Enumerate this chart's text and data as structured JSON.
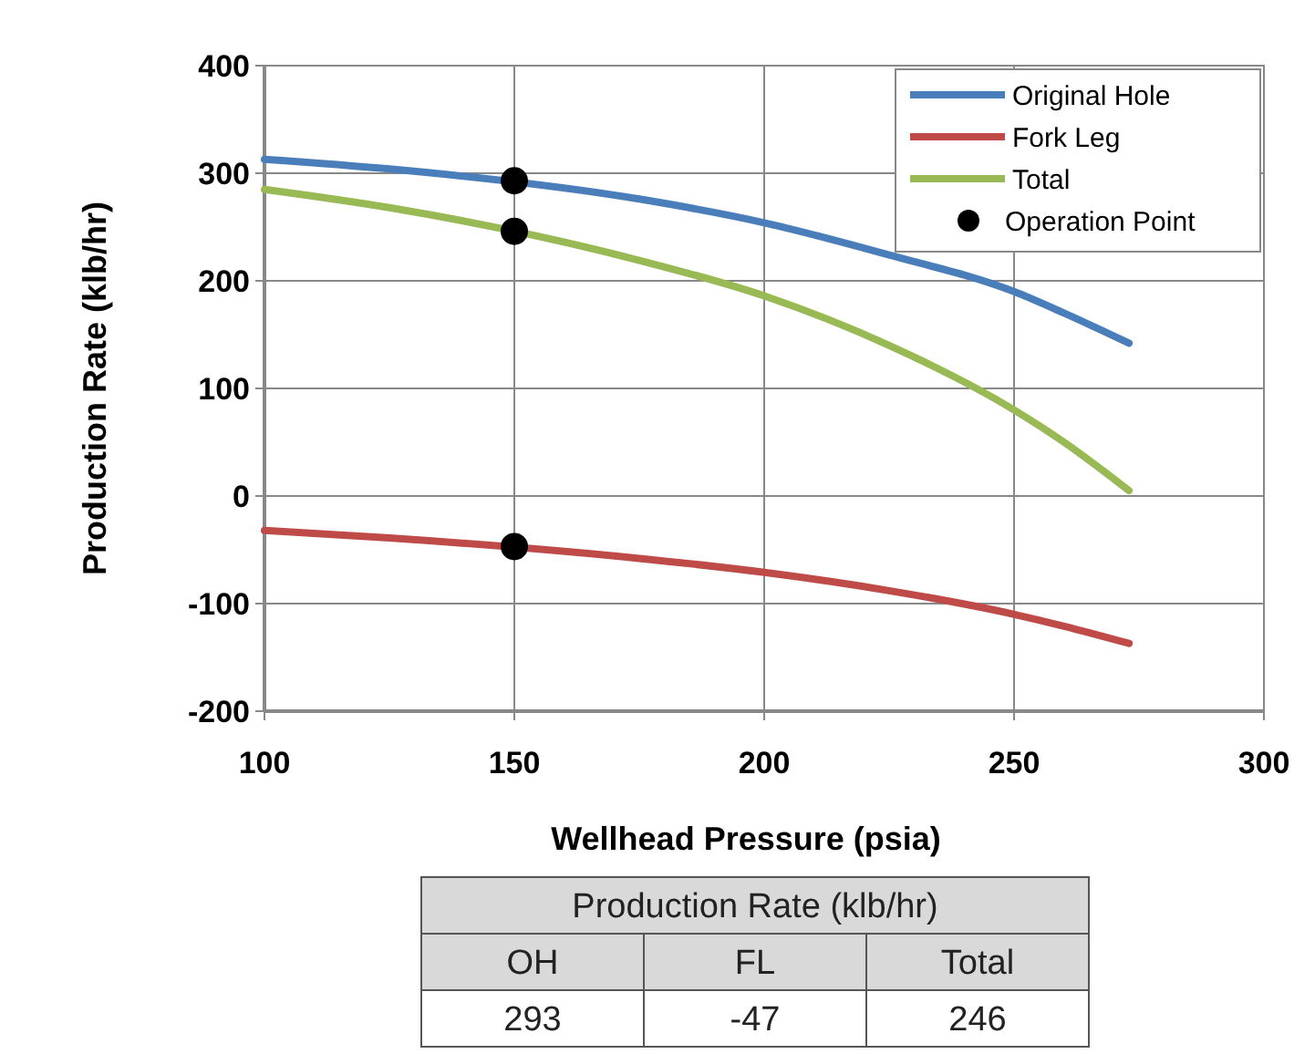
{
  "chart_data": {
    "type": "line",
    "xlabel": "Wellhead Pressure (psia)",
    "ylabel": "Production Rate (klb/hr)",
    "xlim": [
      100,
      300
    ],
    "xticks": [
      100,
      150,
      200,
      250,
      300
    ],
    "ylim": [
      -200,
      400
    ],
    "yticks": [
      -200,
      -100,
      0,
      100,
      200,
      300,
      400
    ],
    "grid": true,
    "legend": "top right",
    "series": [
      {
        "name": "Original Hole",
        "color": "#4a7ebb",
        "x": [
          100,
          125,
          175,
          200,
          225,
          250,
          260,
          273
        ],
        "values": [
          313,
          304,
          276,
          254,
          224,
          190,
          170,
          142
        ]
      },
      {
        "name": "Fork Leg",
        "color": "#be4b48",
        "x": [
          100,
          125,
          175,
          200,
          225,
          250,
          260,
          273
        ],
        "values": [
          -32,
          -39,
          -58,
          -71,
          -88,
          -110,
          -121,
          -137
        ]
      },
      {
        "name": "Total",
        "color": "#98b954",
        "x": [
          100,
          125,
          175,
          200,
          225,
          250,
          260,
          273
        ],
        "values": [
          285,
          268,
          219,
          186,
          140,
          80,
          50,
          5
        ]
      },
      {
        "name": "Operation Point",
        "type": "scatter",
        "marker": "circle",
        "color": "#000000",
        "x": [
          150,
          150,
          150
        ],
        "values": [
          293,
          -47,
          246
        ]
      }
    ],
    "annotations": [
      "Production Rate (klb/hr)",
      "OH",
      "FL",
      "Total",
      "293",
      "-47",
      "246"
    ]
  }
}
